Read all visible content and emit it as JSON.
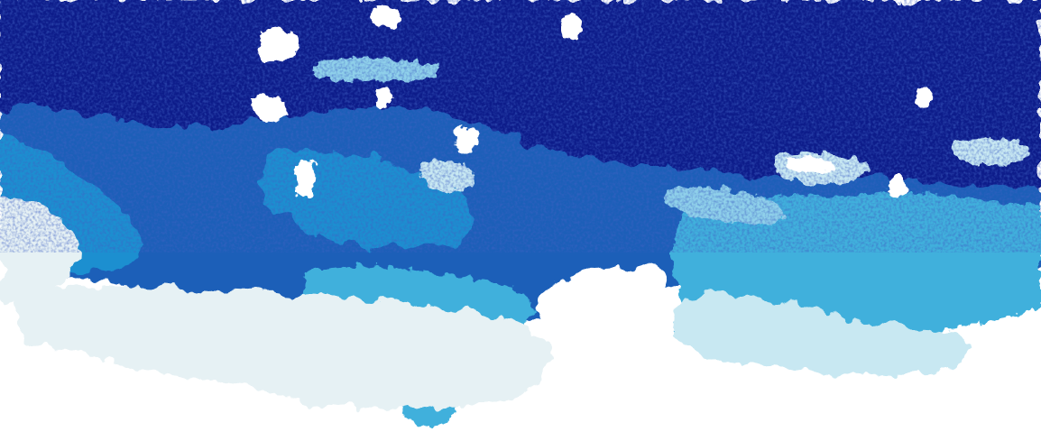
{
  "image": {
    "subject": "abstract-blue-watercolor-texture",
    "palette": {
      "navy": "#0e1f8a",
      "deep_blue": "#1a3fa8",
      "royal_blue": "#1c5fb8",
      "azure": "#1a8fd0",
      "cyan": "#3fb0dc",
      "sky": "#8fd0ea",
      "pale_sky": "#c8e8f2",
      "mist": "#e6f1f4",
      "paper": "#ffffff"
    }
  }
}
